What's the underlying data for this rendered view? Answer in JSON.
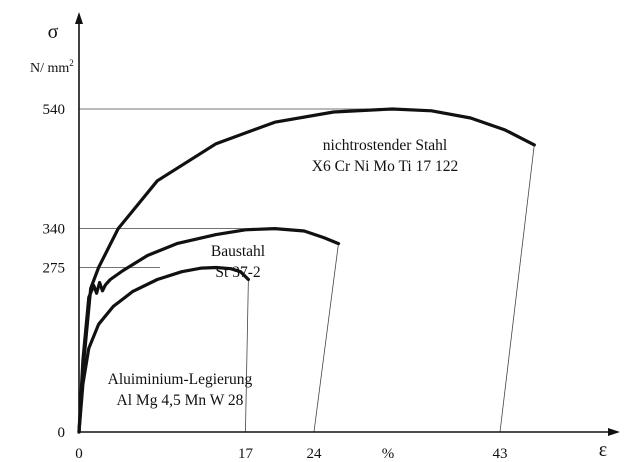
{
  "chart_data": {
    "type": "line",
    "title": "",
    "xlabel": "ε",
    "ylabel": "σ",
    "y_unit": "N/ mm²",
    "x_unit_label": "%",
    "xlim": [
      0,
      58
    ],
    "ylim": [
      0,
      600
    ],
    "x_ticks": [
      {
        "value": 0,
        "label": "0"
      },
      {
        "value": 17,
        "label": "17"
      },
      {
        "value": 24,
        "label": "24"
      },
      {
        "value": 43,
        "label": "43"
      }
    ],
    "y_ticks": [
      {
        "value": 0,
        "label": "0"
      },
      {
        "value": 275,
        "label": "275"
      },
      {
        "value": 340,
        "label": "340"
      },
      {
        "value": 540,
        "label": "540"
      }
    ],
    "series": [
      {
        "name": "nichtrostender Stahl",
        "name_line2": "X6 Cr Ni Mo Ti 17 122",
        "ultimate_strength": 540,
        "elongation_at_break": 43,
        "x": [
          0,
          0.5,
          1.2,
          2,
          4,
          8,
          14,
          20,
          26,
          32,
          36,
          40,
          43.5,
          46.5
        ],
        "y": [
          0,
          120,
          240,
          275,
          340,
          420,
          482,
          518,
          535,
          540,
          537,
          525,
          505,
          480
        ],
        "color": "#111111"
      },
      {
        "name": "Baustahl",
        "name_line2": "St 37-2",
        "ultimate_strength": 340,
        "elongation_at_break": 24,
        "x": [
          0,
          0.4,
          1,
          1.5,
          1.8,
          2.1,
          2.4,
          2.7,
          3.2,
          4.5,
          7,
          10,
          14,
          17,
          20,
          23,
          25,
          26.5
        ],
        "y": [
          0,
          120,
          225,
          245,
          232,
          250,
          236,
          246,
          255,
          270,
          295,
          315,
          330,
          338,
          340,
          336,
          325,
          315
        ],
        "color": "#111111"
      },
      {
        "name": "Aluiminium-Legierung",
        "name_line2": "Al Mg 4,5 Mn W 28",
        "ultimate_strength": 275,
        "elongation_at_break": 17,
        "x": [
          0,
          0.4,
          1,
          2,
          3.5,
          5.5,
          8,
          10.5,
          12.5,
          14,
          15.5,
          16.5,
          17.3
        ],
        "y": [
          0,
          80,
          140,
          180,
          210,
          235,
          255,
          268,
          274,
          275,
          273,
          268,
          255
        ],
        "color": "#111111"
      }
    ],
    "unload_lines": [
      {
        "from": [
          46.5,
          480
        ],
        "to": [
          43,
          0
        ]
      },
      {
        "from": [
          26.5,
          315
        ],
        "to": [
          24,
          0
        ]
      },
      {
        "from": [
          17.3,
          255
        ],
        "to": [
          17,
          0
        ]
      }
    ],
    "reference_lines": [
      540,
      340,
      275
    ],
    "grid": false,
    "legend": "none"
  }
}
